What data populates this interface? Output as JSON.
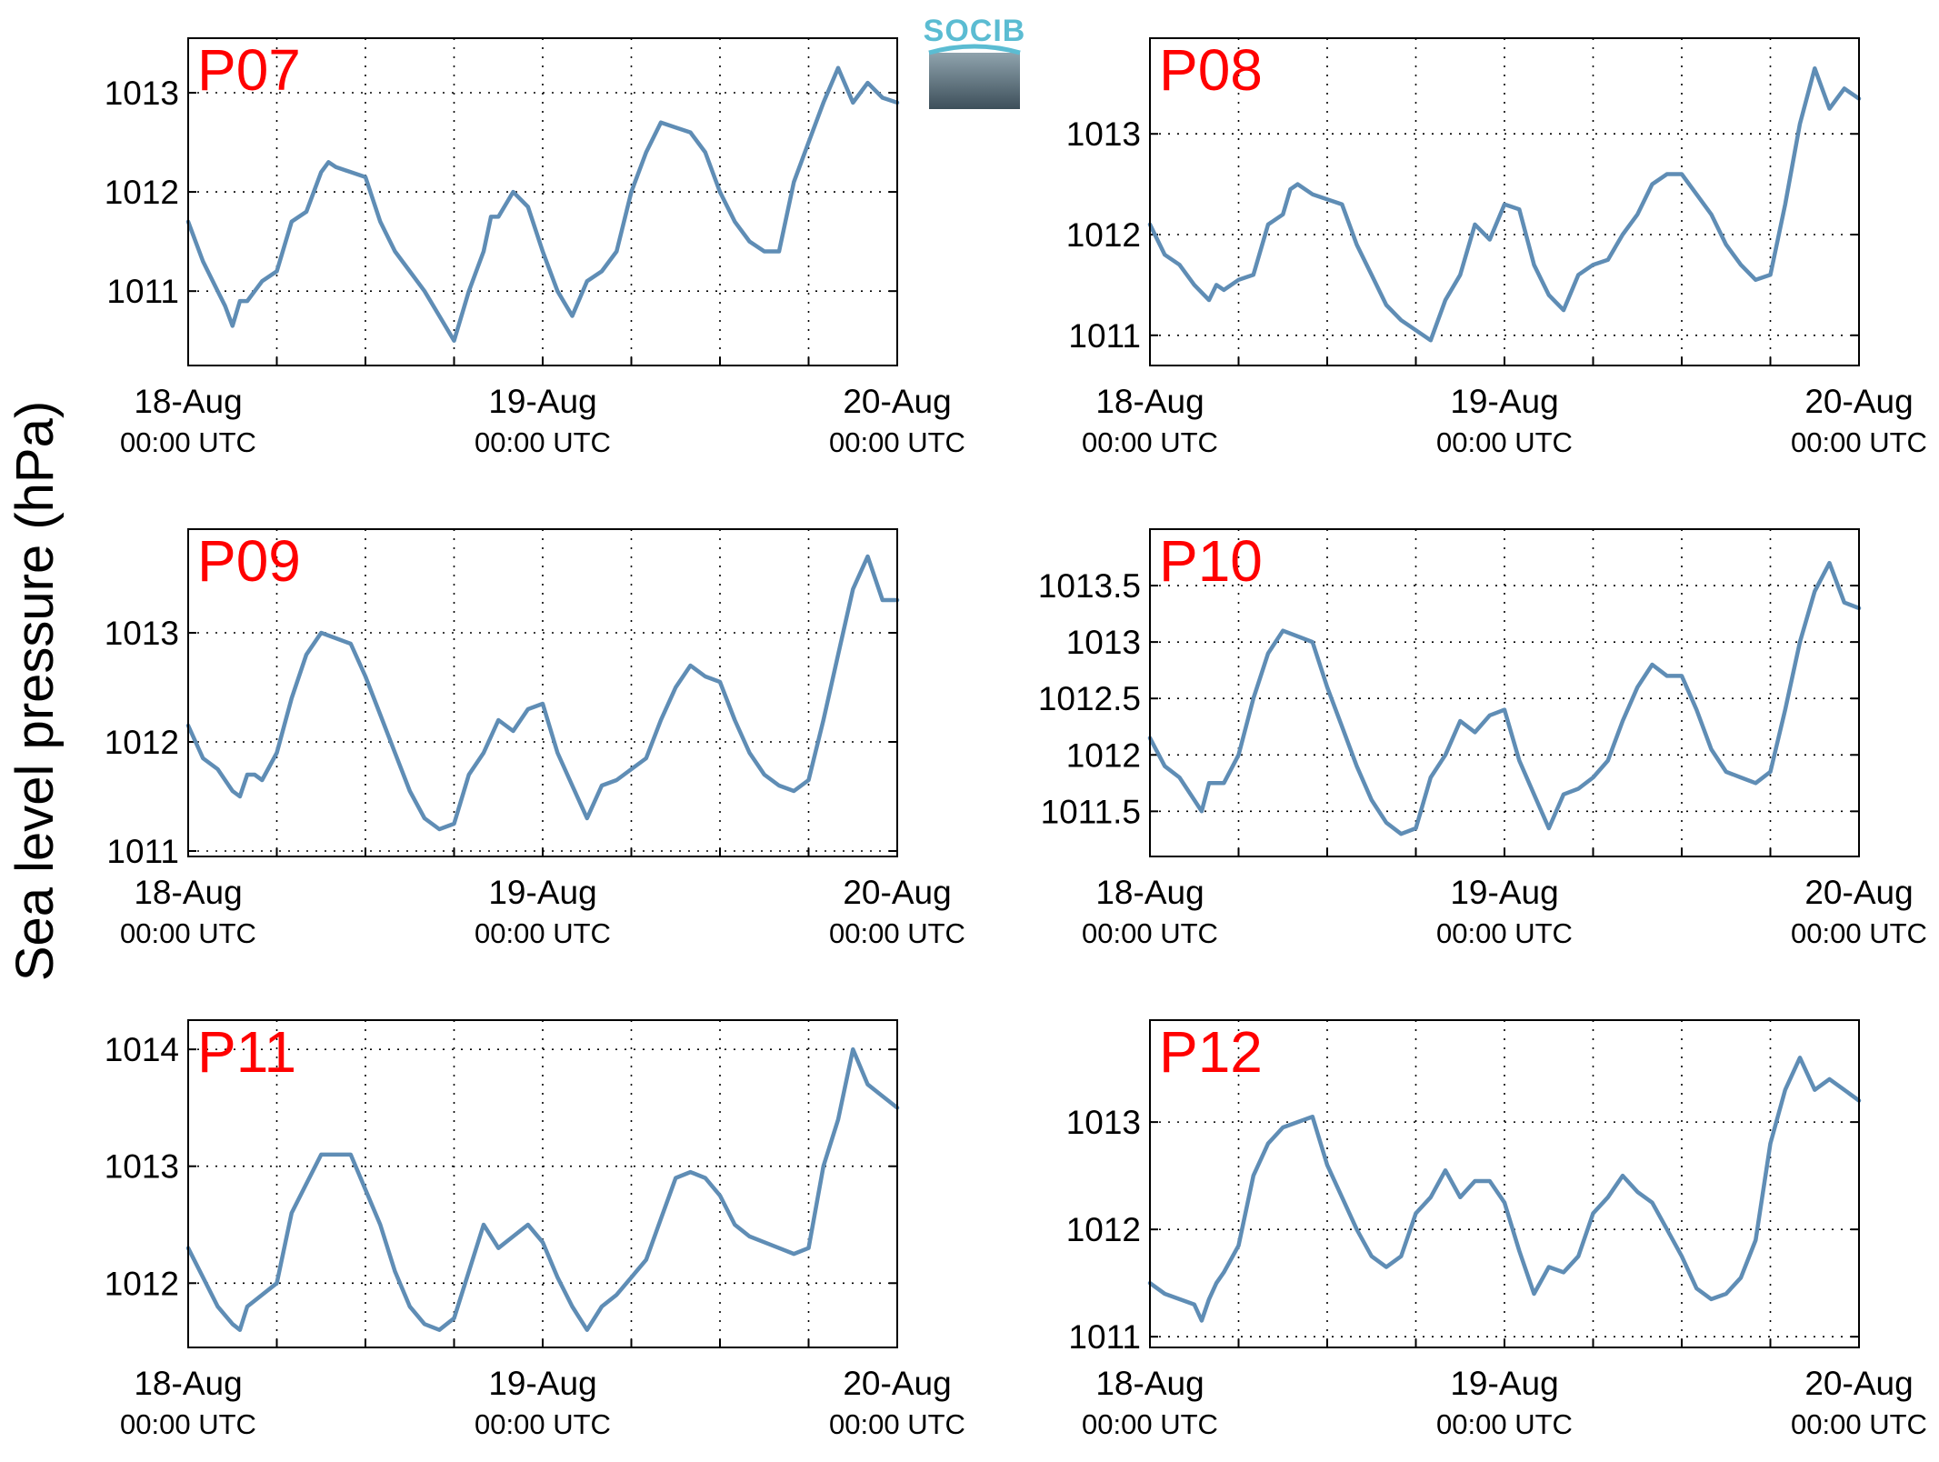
{
  "colors": {
    "line": "#5f8db5",
    "title": "#ff0000",
    "logo": "#5bbcd2",
    "logo_dark": "#3d4f5a"
  },
  "logo": {
    "text": "SOCIB"
  },
  "ylabel": "Sea level pressure (hPa)",
  "x_axis": {
    "ticks": [
      {
        "date": "18-Aug",
        "time": "00:00 UTC",
        "hour": 0
      },
      {
        "date": "19-Aug",
        "time": "00:00 UTC",
        "hour": 24
      },
      {
        "date": "20-Aug",
        "time": "00:00 UTC",
        "hour": 48
      }
    ],
    "grid_hours": [
      6,
      12,
      18,
      24,
      30,
      36,
      42
    ],
    "xlim": [
      0,
      48
    ]
  },
  "chart_data": [
    {
      "type": "line",
      "title": "P07",
      "ylim": [
        1010.25,
        1013.55
      ],
      "yticks": [
        1011,
        1012,
        1013
      ],
      "ytick_labels": [
        "1011",
        "1012",
        "1013"
      ],
      "x": [
        0,
        1,
        2,
        2.5,
        3,
        3.5,
        4,
        5,
        6,
        7,
        8,
        9,
        9.5,
        10,
        11,
        12,
        13,
        14,
        15,
        16,
        17,
        18,
        19,
        20,
        20.5,
        21,
        22,
        23,
        24,
        25,
        26,
        27,
        28,
        29,
        30,
        31,
        32,
        33,
        34,
        35,
        36,
        37,
        38,
        39,
        40,
        41,
        42,
        43,
        44,
        45,
        46,
        47,
        48
      ],
      "y": [
        1011.7,
        1011.3,
        1011.0,
        1010.85,
        1010.65,
        1010.9,
        1010.9,
        1011.1,
        1011.2,
        1011.7,
        1011.8,
        1012.2,
        1012.3,
        1012.25,
        1012.2,
        1012.15,
        1011.7,
        1011.4,
        1011.2,
        1011.0,
        1010.75,
        1010.5,
        1011.0,
        1011.4,
        1011.75,
        1011.75,
        1012.0,
        1011.85,
        1011.4,
        1011.0,
        1010.75,
        1011.1,
        1011.2,
        1011.4,
        1012.0,
        1012.4,
        1012.7,
        1012.65,
        1012.6,
        1012.4,
        1012.0,
        1011.7,
        1011.5,
        1011.4,
        1011.4,
        1012.1,
        1012.5,
        1012.9,
        1013.25,
        1012.9,
        1013.1,
        1012.95,
        1012.9
      ]
    },
    {
      "type": "line",
      "title": "P08",
      "ylim": [
        1010.7,
        1013.95
      ],
      "yticks": [
        1011,
        1012,
        1013
      ],
      "ytick_labels": [
        "1011",
        "1012",
        "1013"
      ],
      "x": [
        0,
        1,
        2,
        3,
        4,
        4.5,
        5,
        6,
        7,
        8,
        9,
        9.5,
        10,
        11,
        12,
        13,
        14,
        15,
        16,
        17,
        18,
        19,
        20,
        21,
        22,
        23,
        24,
        25,
        26,
        27,
        28,
        29,
        30,
        31,
        32,
        33,
        34,
        35,
        36,
        37,
        38,
        39,
        40,
        41,
        42,
        43,
        44,
        45,
        46,
        47,
        48
      ],
      "y": [
        1012.1,
        1011.8,
        1011.7,
        1011.5,
        1011.35,
        1011.5,
        1011.45,
        1011.55,
        1011.6,
        1012.1,
        1012.2,
        1012.45,
        1012.5,
        1012.4,
        1012.35,
        1012.3,
        1011.9,
        1011.6,
        1011.3,
        1011.15,
        1011.05,
        1010.95,
        1011.35,
        1011.6,
        1012.1,
        1011.95,
        1012.3,
        1012.25,
        1011.7,
        1011.4,
        1011.25,
        1011.6,
        1011.7,
        1011.75,
        1012.0,
        1012.2,
        1012.5,
        1012.6,
        1012.6,
        1012.4,
        1012.2,
        1011.9,
        1011.7,
        1011.55,
        1011.6,
        1012.3,
        1013.1,
        1013.65,
        1013.25,
        1013.45,
        1013.35
      ]
    },
    {
      "type": "line",
      "title": "P09",
      "ylim": [
        1010.95,
        1013.95
      ],
      "yticks": [
        1011,
        1012,
        1013
      ],
      "ytick_labels": [
        "1011",
        "1012",
        "1013"
      ],
      "x": [
        0,
        1,
        2,
        3,
        3.5,
        4,
        4.5,
        5,
        6,
        7,
        8,
        9,
        10,
        11,
        12,
        13,
        14,
        15,
        16,
        17,
        18,
        19,
        20,
        21,
        22,
        23,
        24,
        25,
        26,
        27,
        28,
        29,
        30,
        31,
        32,
        33,
        34,
        35,
        36,
        37,
        38,
        39,
        40,
        41,
        42,
        43,
        44,
        45,
        46,
        47,
        48
      ],
      "y": [
        1012.15,
        1011.85,
        1011.75,
        1011.55,
        1011.5,
        1011.7,
        1011.7,
        1011.65,
        1011.9,
        1012.4,
        1012.8,
        1013.0,
        1012.95,
        1012.9,
        1012.6,
        1012.25,
        1011.9,
        1011.55,
        1011.3,
        1011.2,
        1011.25,
        1011.7,
        1011.9,
        1012.2,
        1012.1,
        1012.3,
        1012.35,
        1011.9,
        1011.6,
        1011.3,
        1011.6,
        1011.65,
        1011.75,
        1011.85,
        1012.2,
        1012.5,
        1012.7,
        1012.6,
        1012.55,
        1012.2,
        1011.9,
        1011.7,
        1011.6,
        1011.55,
        1011.65,
        1012.2,
        1012.8,
        1013.4,
        1013.7,
        1013.3,
        1013.3
      ]
    },
    {
      "type": "line",
      "title": "P10",
      "ylim": [
        1011.1,
        1014.0
      ],
      "yticks": [
        1011.5,
        1012,
        1012.5,
        1013,
        1013.5
      ],
      "ytick_labels": [
        "1011.5",
        "1012",
        "1012.5",
        "1013",
        "1013.5"
      ],
      "x": [
        0,
        1,
        2,
        3,
        3.5,
        4,
        4.5,
        5,
        6,
        7,
        8,
        9,
        10,
        11,
        12,
        13,
        14,
        15,
        16,
        17,
        18,
        19,
        20,
        21,
        22,
        23,
        24,
        25,
        26,
        27,
        28,
        29,
        30,
        31,
        32,
        33,
        34,
        35,
        36,
        37,
        38,
        39,
        40,
        41,
        42,
        43,
        44,
        45,
        46,
        47,
        48
      ],
      "y": [
        1012.15,
        1011.9,
        1011.8,
        1011.6,
        1011.5,
        1011.75,
        1011.75,
        1011.75,
        1012.0,
        1012.5,
        1012.9,
        1013.1,
        1013.05,
        1013.0,
        1012.6,
        1012.25,
        1011.9,
        1011.6,
        1011.4,
        1011.3,
        1011.35,
        1011.8,
        1012.0,
        1012.3,
        1012.2,
        1012.35,
        1012.4,
        1011.95,
        1011.65,
        1011.35,
        1011.65,
        1011.7,
        1011.8,
        1011.95,
        1012.3,
        1012.6,
        1012.8,
        1012.7,
        1012.7,
        1012.4,
        1012.05,
        1011.85,
        1011.8,
        1011.75,
        1011.85,
        1012.4,
        1013.0,
        1013.45,
        1013.7,
        1013.35,
        1013.3
      ]
    },
    {
      "type": "line",
      "title": "P11",
      "ylim": [
        1011.45,
        1014.25
      ],
      "yticks": [
        1012,
        1013,
        1014
      ],
      "ytick_labels": [
        "1012",
        "1013",
        "1014"
      ],
      "x": [
        0,
        1,
        2,
        3,
        3.5,
        4,
        4.5,
        5,
        6,
        7,
        8,
        9,
        10,
        11,
        12,
        13,
        14,
        15,
        16,
        17,
        18,
        19,
        20,
        21,
        22,
        23,
        24,
        25,
        26,
        27,
        28,
        29,
        30,
        31,
        32,
        33,
        34,
        35,
        36,
        37,
        38,
        39,
        40,
        41,
        42,
        43,
        44,
        45,
        46,
        47,
        48
      ],
      "y": [
        1012.3,
        1012.05,
        1011.8,
        1011.65,
        1011.6,
        1011.8,
        1011.85,
        1011.9,
        1012.0,
        1012.6,
        1012.85,
        1013.1,
        1013.1,
        1013.1,
        1012.8,
        1012.5,
        1012.1,
        1011.8,
        1011.65,
        1011.6,
        1011.7,
        1012.1,
        1012.5,
        1012.3,
        1012.4,
        1012.5,
        1012.35,
        1012.05,
        1011.8,
        1011.6,
        1011.8,
        1011.9,
        1012.05,
        1012.2,
        1012.55,
        1012.9,
        1012.95,
        1012.9,
        1012.75,
        1012.5,
        1012.4,
        1012.35,
        1012.3,
        1012.25,
        1012.3,
        1013.0,
        1013.4,
        1014.0,
        1013.7,
        1013.6,
        1013.5
      ]
    },
    {
      "type": "line",
      "title": "P12",
      "ylim": [
        1010.9,
        1013.95
      ],
      "yticks": [
        1011,
        1012,
        1013
      ],
      "ytick_labels": [
        "1011",
        "1012",
        "1013"
      ],
      "x": [
        0,
        1,
        2,
        3,
        3.5,
        4,
        4.5,
        5,
        6,
        7,
        8,
        9,
        10,
        11,
        12,
        13,
        14,
        15,
        16,
        17,
        18,
        19,
        20,
        21,
        22,
        23,
        24,
        25,
        26,
        27,
        28,
        29,
        30,
        31,
        32,
        33,
        34,
        35,
        36,
        37,
        38,
        39,
        40,
        41,
        42,
        43,
        44,
        45,
        46,
        47,
        48
      ],
      "y": [
        1011.5,
        1011.4,
        1011.35,
        1011.3,
        1011.15,
        1011.35,
        1011.5,
        1011.6,
        1011.85,
        1012.5,
        1012.8,
        1012.95,
        1013.0,
        1013.05,
        1012.6,
        1012.3,
        1012.0,
        1011.75,
        1011.65,
        1011.75,
        1012.15,
        1012.3,
        1012.55,
        1012.3,
        1012.45,
        1012.45,
        1012.25,
        1011.8,
        1011.4,
        1011.65,
        1011.6,
        1011.75,
        1012.15,
        1012.3,
        1012.5,
        1012.35,
        1012.25,
        1012.0,
        1011.75,
        1011.45,
        1011.35,
        1011.4,
        1011.55,
        1011.9,
        1012.8,
        1013.3,
        1013.6,
        1013.3,
        1013.4,
        1013.3,
        1013.2
      ]
    }
  ]
}
